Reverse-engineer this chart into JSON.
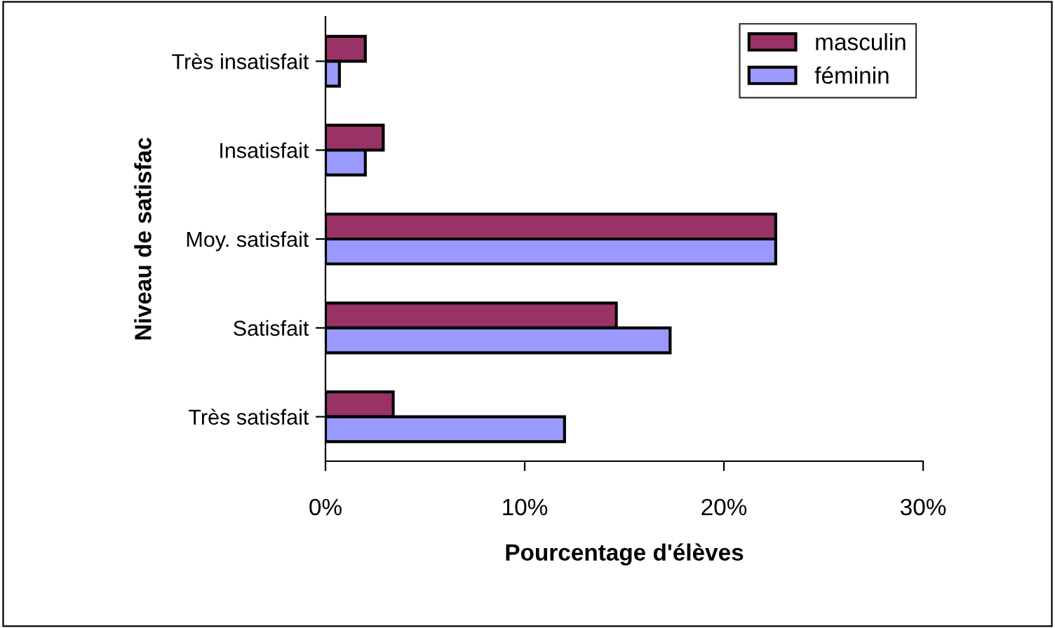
{
  "chart_data": {
    "type": "bar",
    "orientation": "horizontal",
    "xlabel": "Pourcentage d'élèves",
    "ylabel": "Niveau de satisfac",
    "categories": [
      "Très insatisfait",
      "Insatisfait",
      "Moy. satisfait",
      "Satisfait",
      "Très satisfait"
    ],
    "series": [
      {
        "name": "masculin",
        "color": "#993366",
        "values": [
          2.0,
          2.9,
          22.6,
          14.6,
          3.4
        ]
      },
      {
        "name": "féminin",
        "color": "#9999ff",
        "values": [
          0.7,
          2.0,
          22.6,
          17.3,
          12.0
        ]
      }
    ],
    "xlim": [
      0,
      30
    ],
    "xticks": [
      {
        "value": 0,
        "label": "0%"
      },
      {
        "value": 10,
        "label": "10%"
      },
      {
        "value": 20,
        "label": "20%"
      },
      {
        "value": 30,
        "label": "30%"
      }
    ],
    "grid": false,
    "legend": "top right"
  }
}
